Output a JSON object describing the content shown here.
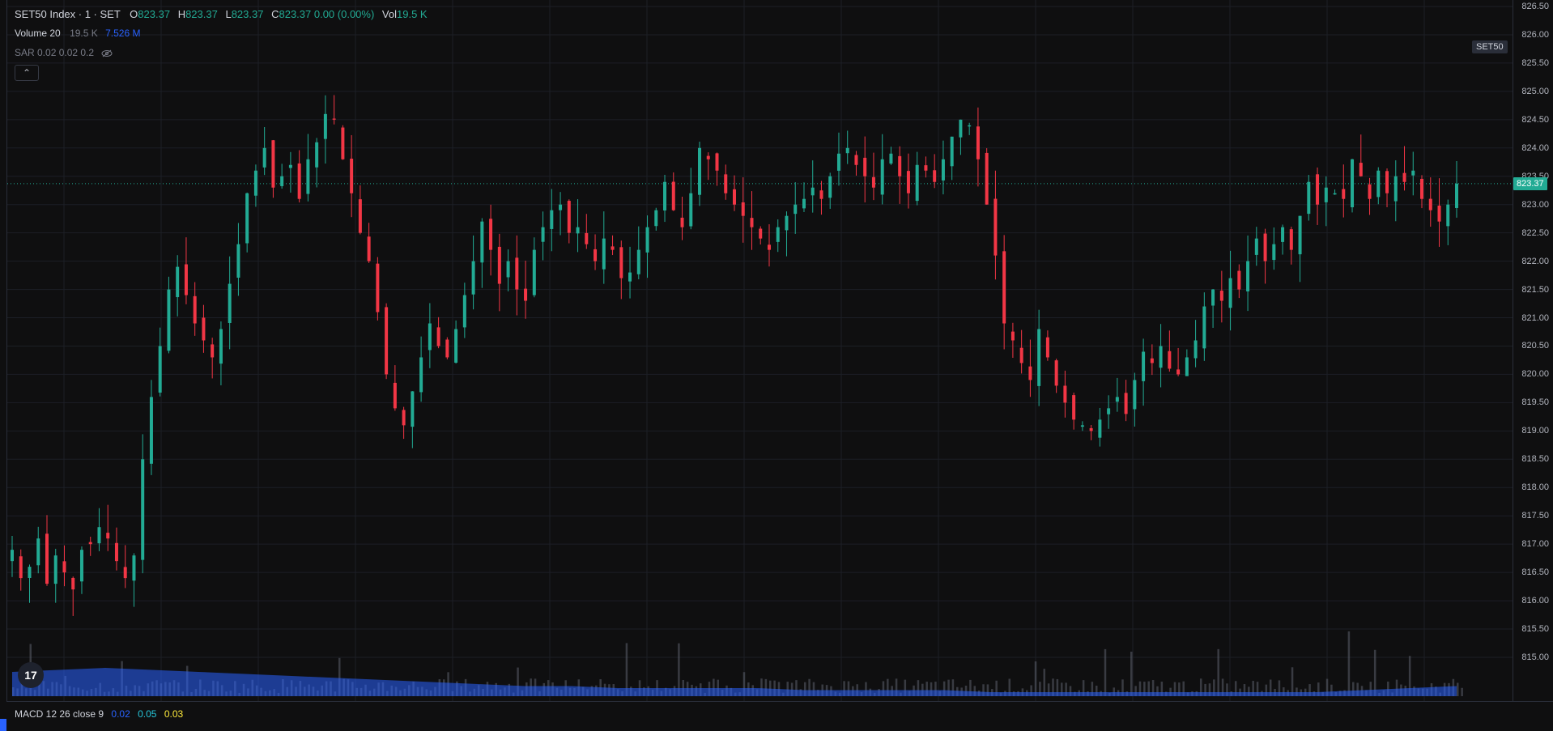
{
  "legend": {
    "symbol": "SET50 Index · 1 · SET",
    "o_label": "O",
    "o_value": "823.37",
    "h_label": "H",
    "h_value": "823.37",
    "l_label": "L",
    "l_value": "823.37",
    "c_label": "C",
    "c_value": "823.37 0.00 (0.00%)",
    "vol_label": "Vol",
    "vol_value": "19.5 K"
  },
  "volume_legend": {
    "label": "Volume 20",
    "value1": "19.5 K",
    "value2": "7.526 M"
  },
  "sar_legend": {
    "label": "SAR 0.02 0.02 0.2",
    "icon": "eye-off-icon"
  },
  "collapse_button": {
    "glyph": "⌃"
  },
  "symbol_badge": "SET50",
  "last_price_badge": "823.37",
  "macd_legend": {
    "label": "MACD 12 26 close 9",
    "v1": "0.02",
    "v2": "0.05",
    "v3": "0.03"
  },
  "logo": {
    "text": "17",
    "icon": "tradingview-logo-icon"
  },
  "colors": {
    "up": "#22ab94",
    "down": "#f23645",
    "volume": "#2962ff",
    "grid": "#1c1f26",
    "background": "#0f0f10"
  },
  "price_scale": {
    "ticks": [
      "826.50",
      "826.00",
      "825.50",
      "825.00",
      "824.50",
      "824.00",
      "823.50",
      "823.00",
      "822.50",
      "822.00",
      "821.50",
      "821.00",
      "820.50",
      "820.00",
      "819.50",
      "819.00",
      "818.50",
      "818.00",
      "817.50",
      "817.00",
      "816.50",
      "816.00",
      "815.50",
      "815.00"
    ]
  },
  "chart_data": {
    "type": "candlestick",
    "ylim": [
      814.7,
      826.6
    ],
    "last_price": 823.37,
    "closes": [
      816.9,
      816.4,
      816.6,
      817.1,
      816.3,
      816.8,
      816.5,
      816.2,
      816.9,
      817.0,
      817.3,
      817.1,
      816.7,
      816.4,
      816.8,
      818.5,
      819.6,
      820.5,
      821.5,
      821.9,
      821.4,
      820.9,
      820.6,
      820.3,
      820.8,
      821.6,
      822.3,
      823.2,
      823.6,
      824.0,
      823.3,
      823.5,
      823.7,
      823.1,
      823.8,
      824.1,
      824.6,
      824.5,
      823.8,
      823.2,
      822.5,
      822.0,
      821.1,
      820.0,
      819.4,
      819.1,
      819.7,
      820.3,
      820.9,
      820.5,
      820.3,
      820.8,
      821.4,
      822.0,
      822.7,
      822.2,
      821.6,
      822.0,
      821.5,
      821.3,
      822.2,
      822.6,
      822.9,
      823.0,
      822.5,
      822.6,
      822.3,
      822.0,
      822.4,
      822.2,
      821.7,
      821.8,
      822.2,
      822.6,
      822.9,
      823.4,
      822.9,
      822.6,
      823.2,
      824.0,
      823.8,
      823.6,
      823.2,
      823.0,
      822.8,
      822.6,
      822.4,
      822.2,
      822.6,
      822.8,
      823.0,
      823.1,
      823.3,
      823.1,
      823.5,
      823.9,
      824.0,
      823.7,
      823.5,
      823.3,
      823.8,
      823.9,
      823.5,
      823.2,
      823.7,
      823.6,
      823.4,
      823.8,
      824.2,
      824.5,
      824.4,
      823.8,
      823.0,
      822.1,
      820.9,
      820.6,
      820.2,
      819.9,
      820.8,
      820.3,
      819.8,
      819.5,
      819.2,
      819.1,
      819.0,
      819.2,
      819.4,
      819.6,
      819.3,
      819.9,
      820.4,
      820.2,
      820.5,
      820.1,
      820.0,
      820.3,
      820.6,
      821.2,
      821.5,
      821.3,
      821.7,
      821.5,
      822.0,
      822.4,
      822.0,
      822.3,
      822.6,
      822.2,
      822.8,
      823.4,
      823.0,
      823.3,
      823.2,
      823.1,
      823.8,
      823.5,
      823.1,
      823.6,
      823.2,
      823.5,
      823.4,
      823.6,
      823.1,
      822.9,
      822.7,
      823.0,
      823.37
    ],
    "volume_ma": [
      0.12,
      0.13,
      0.14,
      0.13,
      0.12,
      0.11,
      0.1,
      0.09,
      0.08,
      0.07,
      0.06,
      0.05,
      0.05,
      0.04,
      0.04,
      0.04,
      0.04,
      0.03,
      0.03,
      0.03,
      0.03,
      0.02,
      0.02,
      0.02,
      0.02,
      0.02,
      0.02,
      0.02,
      0.02,
      0.03,
      0.04,
      0.05
    ]
  }
}
